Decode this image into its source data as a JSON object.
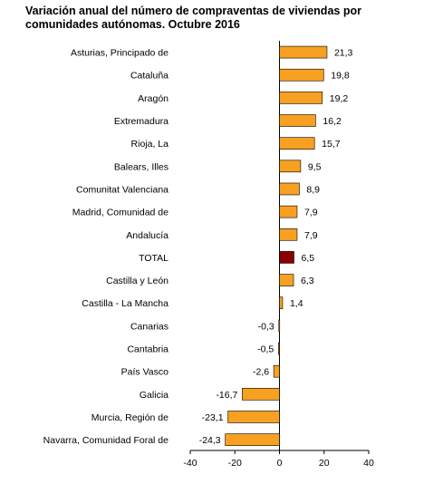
{
  "title_lines": [
    "Variación anual del número de compraventas de viviendas por",
    "comunidades autónomas. Octubre 2016"
  ],
  "chart_data": {
    "type": "bar",
    "orientation": "horizontal",
    "title": "Variación anual del número de compraventas de viviendas por comunidades autónomas. Octubre 2016",
    "categories": [
      "Asturias, Principado de",
      "Cataluña",
      "Aragón",
      "Extremadura",
      "Rioja, La",
      "Balears, Illes",
      "Comunitat Valenciana",
      "Madrid, Comunidad de",
      "Andalucía",
      "TOTAL",
      "Castilla y León",
      "Castilla - La Mancha",
      "Canarias",
      "Cantabria",
      "País Vasco",
      "Galicia",
      "Murcia, Región de",
      "Navarra, Comunidad Foral de"
    ],
    "values": [
      21.3,
      19.8,
      19.2,
      16.2,
      15.7,
      9.5,
      8.9,
      7.9,
      7.9,
      6.5,
      6.3,
      1.4,
      -0.3,
      -0.5,
      -2.6,
      -16.7,
      -23.1,
      -24.3
    ],
    "value_labels": [
      "21,3",
      "19,8",
      "19,2",
      "16,2",
      "15,7",
      "9,5",
      "8,9",
      "7,9",
      "7,9",
      "6,5",
      "6,3",
      "1,4",
      "-0,3",
      "-0,5",
      "-2,6",
      "-16,7",
      "-23,1",
      "-24,3"
    ],
    "xlim": [
      -40,
      40
    ],
    "xticks": [
      -40,
      -20,
      0,
      20,
      40
    ],
    "xtick_labels": [
      "-40",
      "-20",
      "0",
      "20",
      "40"
    ],
    "bar_color": "#f7a021",
    "highlight_category": "TOTAL",
    "highlight_color": "#8b0000",
    "bar_edge_color": "#000000",
    "grid": false,
    "legend": "none"
  }
}
